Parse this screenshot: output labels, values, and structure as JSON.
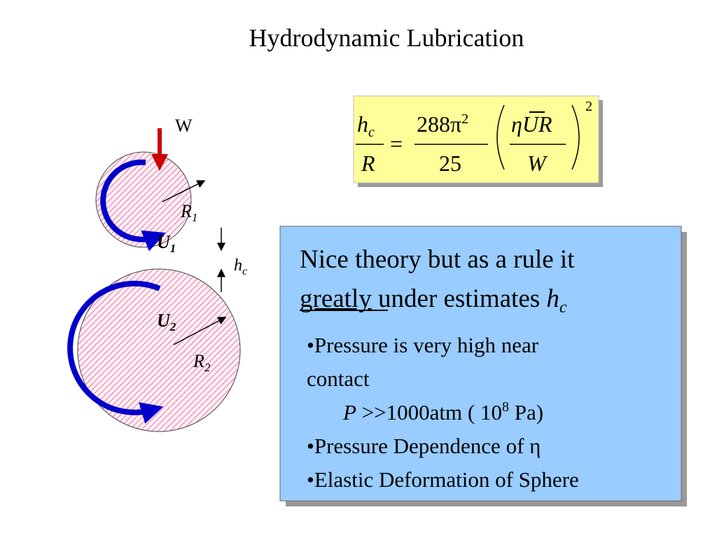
{
  "title": "Hydrodynamic Lubrication",
  "diagram": {
    "load": "W",
    "sphere1": {
      "radius": "R",
      "radius_sub": "1",
      "velocity": "U",
      "velocity_sub": "1"
    },
    "sphere2": {
      "radius": "R",
      "radius_sub": "2",
      "velocity": "U",
      "velocity_sub": "2"
    },
    "gap": "h",
    "gap_sub": "c"
  },
  "formula": {
    "lhs_num": "h",
    "lhs_num_sub": "c",
    "lhs_den": "R",
    "equals": "=",
    "coef_num": "288π",
    "coef_num_sup": "2",
    "coef_den": "25",
    "paren_num": [
      "η",
      "U",
      "R"
    ],
    "paren_den": "W",
    "exponent": "2"
  },
  "note": {
    "line1": "Nice theory but as a rule it",
    "emphasis": "greatly",
    "line2_rest": " under estimates ",
    "symbol": "h",
    "symbol_sub": "c",
    "bullet1_line1": "•Pressure is very high near",
    "bullet1_line2": "contact",
    "detail": {
      "var": "P",
      "text": " >>1000atm ( 10",
      "sup": "8",
      "unit": " Pa)"
    },
    "bullet2": "•Pressure Dependence of η",
    "bullet3": "•Elastic Deformation of Sphere"
  }
}
